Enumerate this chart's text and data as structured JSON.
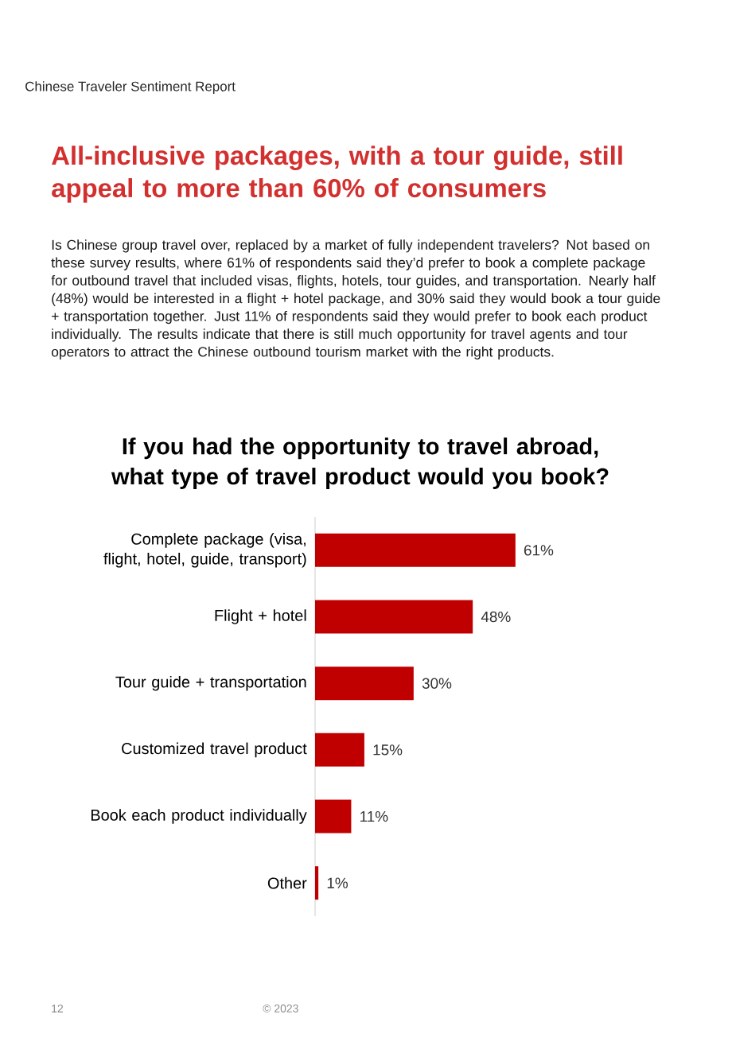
{
  "chart_data": {
    "type": "bar",
    "orientation": "horizontal",
    "title": "All-inclusive packages, with a tour guide, still appeal to more than 60% of consumers",
    "subtitle": "If you had the opportunity to travel abroad, what type of travel product would you book?",
    "categories": [
      "Complete package (visa, flight, hotel, guide, transport)",
      "Flight + hotel",
      "Tour guide + transportation",
      "Customized travel product",
      "Book each product individually",
      "Other"
    ],
    "values": [
      61,
      48,
      30,
      15,
      11,
      1
    ],
    "value_labels": [
      "61%",
      "48%",
      "30%",
      "15%",
      "11%",
      "1%"
    ],
    "color": "#c00000",
    "tick_labels": "y",
    "annotations": [
      "Chinese Traveler Sentiment Report",
      "Is Chinese group travel over, replaced by a market of fully independent travelers? Not based on these survey results, where 61% of respondents said they’d prefer to book a complete package for outbound travel that included visas, flights, hotels, tour guides, and transportation. Nearly half (48%) would be interested in a flight + hotel package, and 30% said they would book a tour guide + transportation together. Just 11% of respondents said they would prefer to book each product individually. The results indicate that there is still much opportunity for travel agents and tour operators to attract the Chinese outbound tourism market with the right products.",
      "12",
      "© 2023"
    ]
  }
}
